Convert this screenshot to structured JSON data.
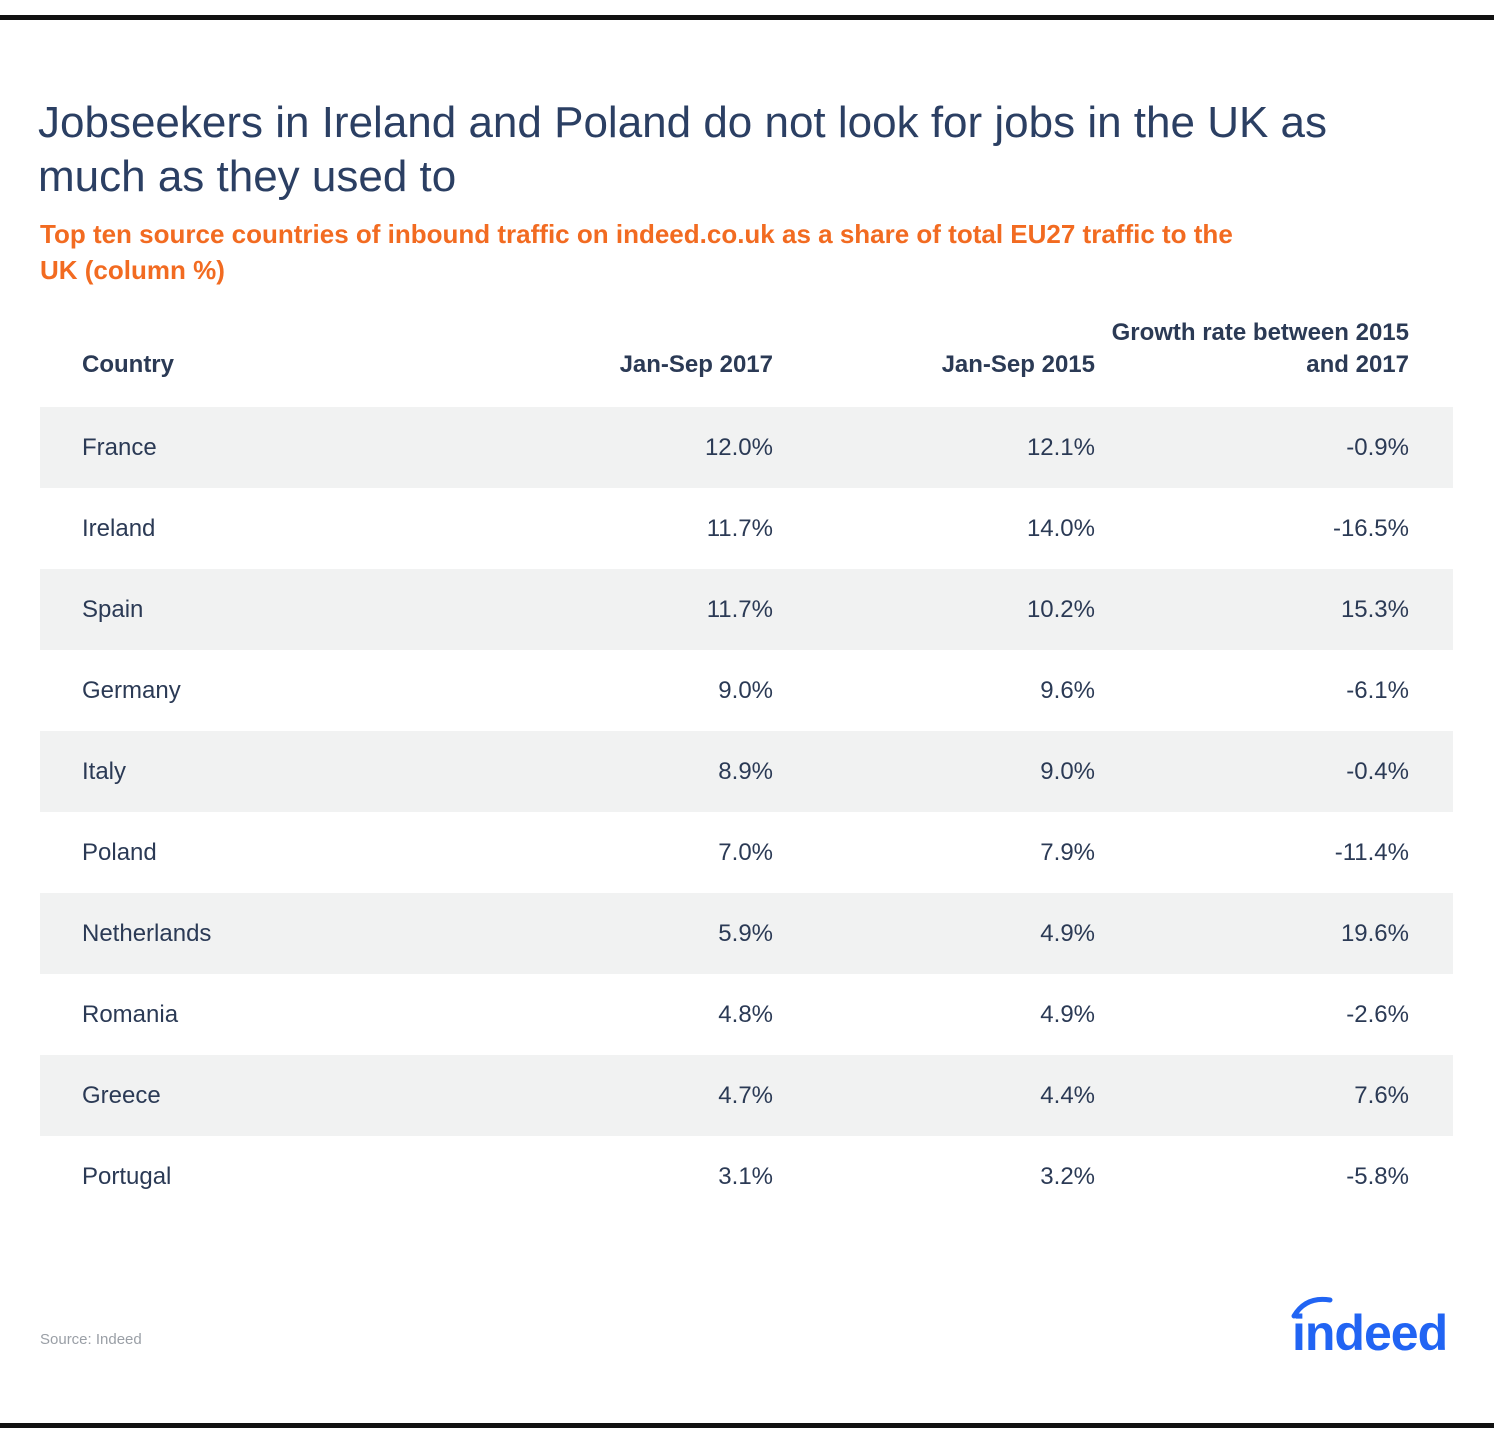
{
  "title": "Jobseekers in Ireland and Poland do not look for jobs in the UK as much as they used to",
  "subtitle": "Top ten source countries of inbound traffic on indeed.co.uk as a share of total EU27 traffic to the UK (column %)",
  "source": "Source: Indeed",
  "logo_text": "indeed",
  "colors": {
    "title": "#2b3f63",
    "subtitle": "#f26b21",
    "row_shade": "#f1f2f2",
    "logo": "#2164f3"
  },
  "chart_data": {
    "type": "table",
    "title": "Jobseekers in Ireland and Poland do not look for jobs in the UK as much as they used to",
    "subtitle": "Top ten source countries of inbound traffic on indeed.co.uk as a share of total EU27 traffic to the UK (column %)",
    "columns": [
      "Country",
      "Jan-Sep 2017",
      "Jan-Sep 2015",
      "Growth rate between 2015 and 2017"
    ],
    "rows": [
      [
        "France",
        "12.0%",
        "12.1%",
        "-0.9%"
      ],
      [
        "Ireland",
        "11.7%",
        "14.0%",
        "-16.5%"
      ],
      [
        "Spain",
        "11.7%",
        "10.2%",
        "15.3%"
      ],
      [
        "Germany",
        "9.0%",
        "9.6%",
        "-6.1%"
      ],
      [
        "Italy",
        "8.9%",
        "9.0%",
        "-0.4%"
      ],
      [
        "Poland",
        "7.0%",
        "7.9%",
        "-11.4%"
      ],
      [
        "Netherlands",
        "5.9%",
        "4.9%",
        "19.6%"
      ],
      [
        "Romania",
        "4.8%",
        "4.9%",
        "-2.6%"
      ],
      [
        "Greece",
        "4.7%",
        "4.4%",
        "7.6%"
      ],
      [
        "Portugal",
        "3.1%",
        "3.2%",
        "-5.8%"
      ]
    ]
  }
}
